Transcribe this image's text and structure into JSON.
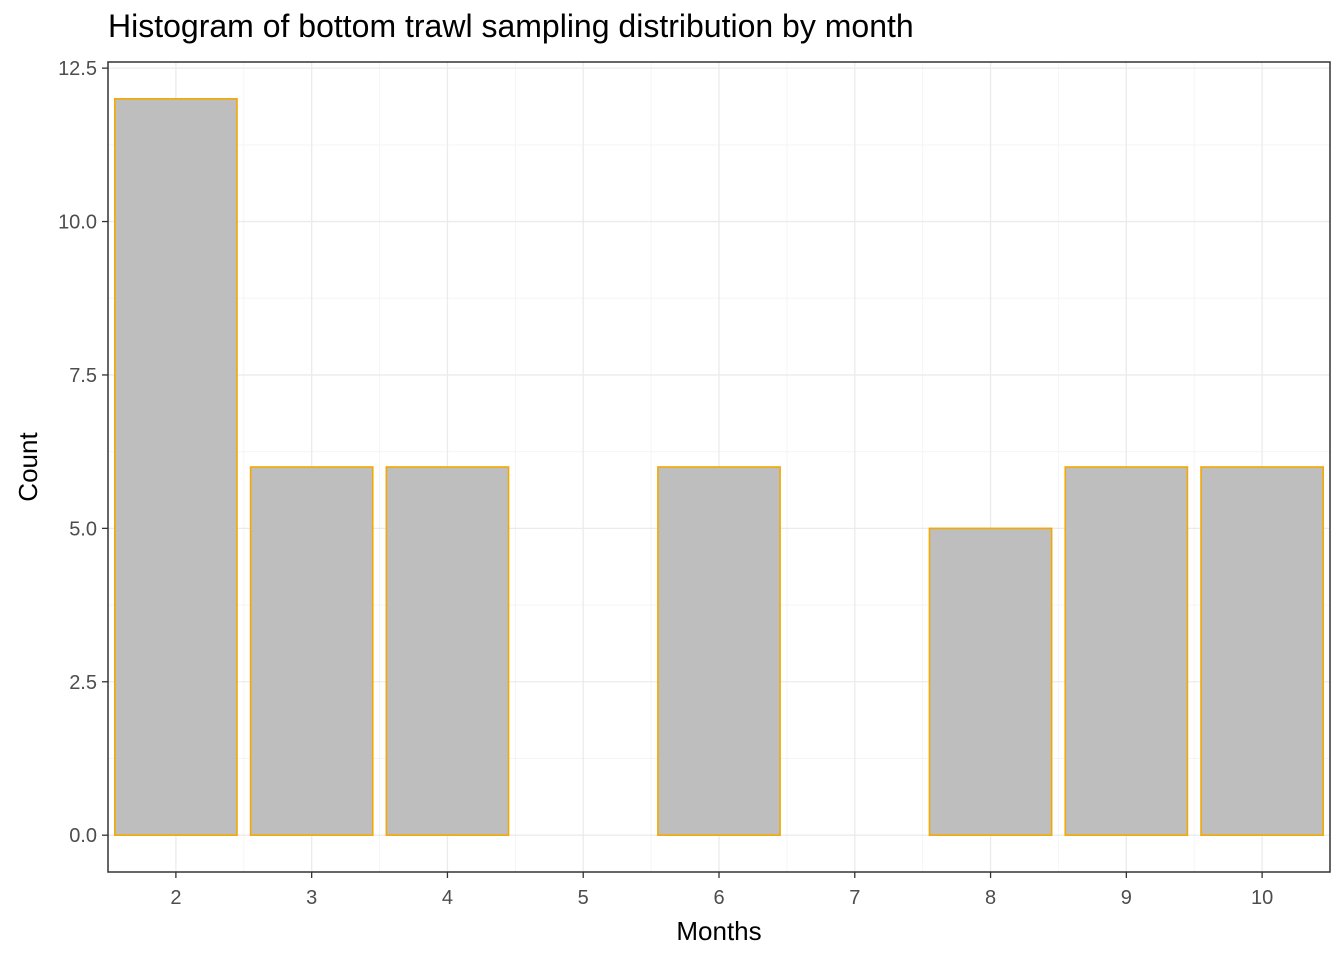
{
  "chart_data": {
    "type": "bar",
    "title": "Histogram of bottom trawl sampling distribution by month",
    "xlabel": "Months",
    "ylabel": "Count",
    "x": [
      2,
      3,
      4,
      5,
      6,
      7,
      8,
      9,
      10
    ],
    "values": [
      12,
      6,
      6,
      0,
      6,
      0,
      5,
      6,
      6
    ],
    "x_ticks": [
      "2",
      "3",
      "4",
      "5",
      "6",
      "7",
      "8",
      "9",
      "10"
    ],
    "y_ticks": [
      "0.0",
      "2.5",
      "5.0",
      "7.5",
      "10.0",
      "12.5"
    ],
    "y_tick_values": [
      0,
      2.5,
      5,
      7.5,
      10,
      12.5
    ],
    "xlim": [
      1.5,
      10.5
    ],
    "ylim": [
      -0.6,
      12.6
    ],
    "grid": true,
    "colors": {
      "bar_fill": "#bebebe",
      "bar_outline": "#f5a800",
      "grid_major": "#ebebeb",
      "grid_minor": "#f5f5f5",
      "panel_border": "#333333",
      "tick_text": "#4d4d4d"
    }
  }
}
